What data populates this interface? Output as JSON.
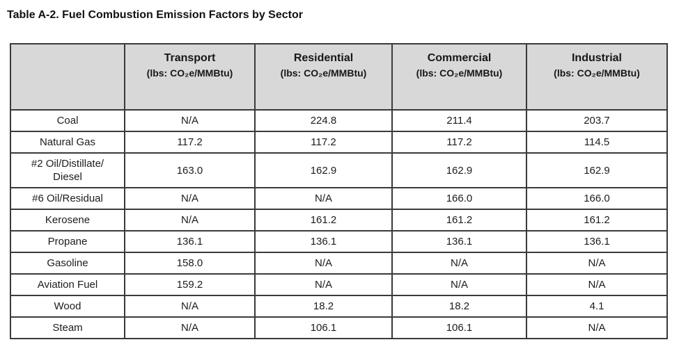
{
  "page": {
    "title": "Table A-2. Fuel Combustion Emission Factors by Sector"
  },
  "table": {
    "corner_label": "",
    "columns": [
      {
        "name": "Transport",
        "unit": "(lbs: CO₂e/MMBtu)"
      },
      {
        "name": "Residential",
        "unit": "(lbs: CO₂e/MMBtu)"
      },
      {
        "name": "Commercial",
        "unit": "(lbs: CO₂e/MMBtu)"
      },
      {
        "name": "Industrial",
        "unit": "(lbs: CO₂e/MMBtu)"
      }
    ],
    "rows": [
      {
        "fuel": "Coal",
        "values": [
          "N/A",
          "224.8",
          "211.4",
          "203.7"
        ]
      },
      {
        "fuel": "Natural Gas",
        "values": [
          "117.2",
          "117.2",
          "117.2",
          "114.5"
        ]
      },
      {
        "fuel": "#2 Oil/Distillate/ Diesel",
        "values": [
          "163.0",
          "162.9",
          "162.9",
          "162.9"
        ]
      },
      {
        "fuel": "#6 Oil/Residual",
        "values": [
          "N/A",
          "N/A",
          "166.0",
          "166.0"
        ]
      },
      {
        "fuel": "Kerosene",
        "values": [
          "N/A",
          "161.2",
          "161.2",
          "161.2"
        ]
      },
      {
        "fuel": "Propane",
        "values": [
          "136.1",
          "136.1",
          "136.1",
          "136.1"
        ]
      },
      {
        "fuel": "Gasoline",
        "values": [
          "158.0",
          "N/A",
          "N/A",
          "N/A"
        ]
      },
      {
        "fuel": "Aviation Fuel",
        "values": [
          "159.2",
          "N/A",
          "N/A",
          "N/A"
        ]
      },
      {
        "fuel": "Wood",
        "values": [
          "N/A",
          "18.2",
          "18.2",
          "4.1"
        ]
      },
      {
        "fuel": "Steam",
        "values": [
          "N/A",
          "106.1",
          "106.1",
          "N/A"
        ]
      }
    ],
    "colors": {
      "header_bg": "#d8d8d8",
      "border": "#3a3a3a",
      "text": "#1c1c1c"
    }
  }
}
